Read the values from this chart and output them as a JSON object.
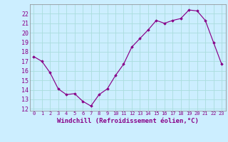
{
  "x": [
    0,
    1,
    2,
    3,
    4,
    5,
    6,
    7,
    8,
    9,
    10,
    11,
    12,
    13,
    14,
    15,
    16,
    17,
    18,
    19,
    20,
    21,
    22,
    23
  ],
  "y": [
    17.5,
    17.0,
    15.8,
    14.1,
    13.5,
    13.6,
    12.8,
    12.3,
    13.5,
    14.1,
    15.5,
    16.7,
    18.5,
    19.4,
    20.3,
    21.3,
    21.0,
    21.3,
    21.5,
    22.4,
    22.3,
    21.3,
    19.0,
    16.7
  ],
  "xlim": [
    -0.5,
    23.5
  ],
  "ylim": [
    11.8,
    23.0
  ],
  "yticks": [
    12,
    13,
    14,
    15,
    16,
    17,
    18,
    19,
    20,
    21,
    22
  ],
  "xticks": [
    0,
    1,
    2,
    3,
    4,
    5,
    6,
    7,
    8,
    9,
    10,
    11,
    12,
    13,
    14,
    15,
    16,
    17,
    18,
    19,
    20,
    21,
    22,
    23
  ],
  "xlabel": "Windchill (Refroidissement éolien,°C)",
  "line_color": "#880088",
  "marker": "D",
  "marker_size": 1.8,
  "bg_color": "#cceeff",
  "grid_color": "#aadddd",
  "spine_color": "#888888"
}
